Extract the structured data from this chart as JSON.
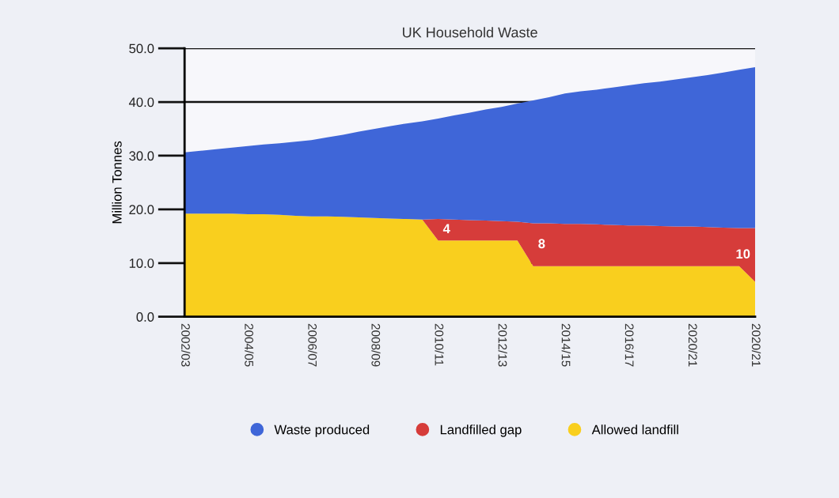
{
  "chart_data": {
    "type": "area",
    "title": "UK Household Waste",
    "ylabel": "Million Tonnes",
    "stacked": true,
    "categories": [
      "2002/03",
      null,
      null,
      null,
      "2004/05",
      null,
      null,
      null,
      "2006/07",
      null,
      null,
      null,
      "2008/09",
      null,
      null,
      null,
      "2010/11",
      null,
      null,
      null,
      "2012/13",
      null,
      null,
      null,
      "2014/15",
      null,
      null,
      null,
      "2016/17",
      null,
      null,
      null,
      "2020/21",
      null,
      null,
      null,
      "2020/21"
    ],
    "series": [
      {
        "name": "Allowed landfill",
        "color": "#f9cf1e",
        "values": [
          19.2,
          19.2,
          19.2,
          19.2,
          19.1,
          19.1,
          19.0,
          18.8,
          18.7,
          18.7,
          18.6,
          18.5,
          18.4,
          18.3,
          18.2,
          18.1,
          14.2,
          14.2,
          14.2,
          14.2,
          14.2,
          14.2,
          9.4,
          9.4,
          9.4,
          9.4,
          9.4,
          9.4,
          9.4,
          9.4,
          9.4,
          9.4,
          9.4,
          9.4,
          9.4,
          9.4,
          6.5
        ]
      },
      {
        "name": "Landfilled gap",
        "color": "#d63c3a",
        "values": [
          0,
          0,
          0,
          0,
          0,
          0,
          0,
          0,
          0,
          0,
          0,
          0,
          0,
          0,
          0,
          0,
          4.0,
          3.9,
          3.8,
          3.7,
          3.6,
          3.5,
          8.0,
          8.0,
          7.9,
          7.9,
          7.8,
          7.7,
          7.6,
          7.6,
          7.5,
          7.4,
          7.4,
          7.3,
          7.2,
          7.1,
          10.0
        ],
        "value_labels": [
          null,
          null,
          null,
          null,
          null,
          null,
          null,
          null,
          null,
          null,
          null,
          null,
          null,
          null,
          null,
          null,
          "4",
          null,
          null,
          null,
          null,
          null,
          "8",
          null,
          null,
          null,
          null,
          null,
          null,
          null,
          null,
          null,
          null,
          null,
          null,
          null,
          "10"
        ]
      },
      {
        "name": "Waste produced",
        "color": "#3f66d8",
        "values": [
          11.4,
          11.7,
          12.0,
          12.3,
          12.7,
          13.0,
          13.3,
          13.8,
          14.2,
          14.7,
          15.3,
          16.0,
          16.6,
          17.2,
          17.8,
          18.3,
          18.7,
          19.4,
          20.0,
          20.7,
          21.3,
          22.0,
          22.9,
          23.5,
          24.3,
          24.7,
          25.1,
          25.6,
          26.1,
          26.5,
          26.9,
          27.4,
          27.8,
          28.3,
          28.9,
          29.5,
          30.0
        ]
      }
    ],
    "ylim": [
      0,
      50
    ],
    "yticks": [
      {
        "value": 0,
        "label": "0.0"
      },
      {
        "value": 10,
        "label": "10.0"
      },
      {
        "value": 20,
        "label": "20.0"
      },
      {
        "value": 30,
        "label": "30.0"
      },
      {
        "value": 40,
        "label": "40.0"
      },
      {
        "value": 50,
        "label": "50.0"
      }
    ],
    "grid": "y",
    "legend": "bottom"
  }
}
